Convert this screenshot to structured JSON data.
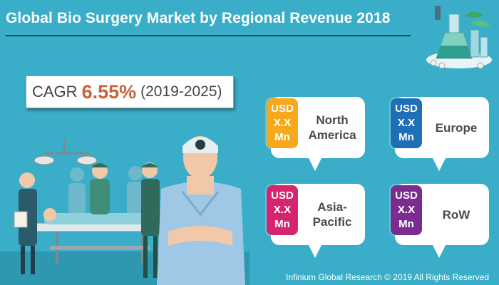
{
  "title": "Global Bio Surgery Market by Regional Revenue 2018",
  "cagr": {
    "label": "CAGR",
    "value": "6.55%",
    "period": "(2019-2025)"
  },
  "regions": [
    {
      "name": "North America",
      "value_line1": "USD",
      "value_line2": "X.X",
      "value_line3": "Mn",
      "color": "#f7a81b"
    },
    {
      "name": "Europe",
      "value_line1": "USD",
      "value_line2": "X.X",
      "value_line3": "Mn",
      "color": "#1f6fb8"
    },
    {
      "name": "Asia-Pacific",
      "value_line1": "USD",
      "value_line2": "X.X",
      "value_line3": "Mn",
      "color": "#d6246e"
    },
    {
      "name": "RoW",
      "value_line1": "USD",
      "value_line2": "X.X",
      "value_line3": "Mn",
      "color": "#7b2c91"
    }
  ],
  "footer": "Infinium Global Research © 2019 All Rights Reserved",
  "colors": {
    "background": "#3aaec9",
    "cagr_value": "#c8643a",
    "title_rule": "#16495a"
  }
}
